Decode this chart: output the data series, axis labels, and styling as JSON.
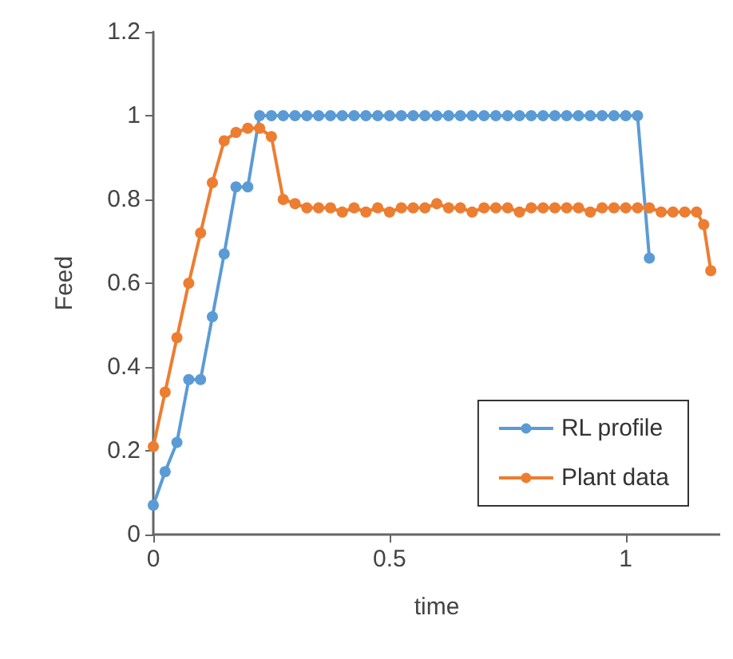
{
  "chart_data": {
    "type": "line",
    "xlabel": "time",
    "ylabel": "Feed",
    "series": [
      {
        "name": "RL profile",
        "color": "#5b9bd5",
        "x": [
          0,
          0.025,
          0.05,
          0.075,
          0.1,
          0.125,
          0.15,
          0.175,
          0.2,
          0.225,
          0.25,
          0.275,
          0.3,
          0.325,
          0.35,
          0.375,
          0.4,
          0.425,
          0.45,
          0.475,
          0.5,
          0.525,
          0.55,
          0.575,
          0.6,
          0.625,
          0.65,
          0.675,
          0.7,
          0.725,
          0.75,
          0.775,
          0.8,
          0.825,
          0.85,
          0.875,
          0.9,
          0.925,
          0.95,
          0.975,
          1,
          1.025,
          1.05
        ],
        "values": [
          0.07,
          0.15,
          0.22,
          0.37,
          0.37,
          0.52,
          0.67,
          0.83,
          0.83,
          1,
          1,
          1,
          1,
          1,
          1,
          1,
          1,
          1,
          1,
          1,
          1,
          1,
          1,
          1,
          1,
          1,
          1,
          1,
          1,
          1,
          1,
          1,
          1,
          1,
          1,
          1,
          1,
          1,
          1,
          1,
          1,
          1,
          0.66
        ]
      },
      {
        "name": "Plant data",
        "color": "#ed7d31",
        "x": [
          0,
          0.025,
          0.05,
          0.075,
          0.1,
          0.125,
          0.15,
          0.175,
          0.2,
          0.225,
          0.25,
          0.275,
          0.3,
          0.325,
          0.35,
          0.375,
          0.4,
          0.425,
          0.45,
          0.475,
          0.5,
          0.525,
          0.55,
          0.575,
          0.6,
          0.625,
          0.65,
          0.675,
          0.7,
          0.725,
          0.75,
          0.775,
          0.8,
          0.825,
          0.85,
          0.875,
          0.9,
          0.925,
          0.95,
          0.975,
          1,
          1.025,
          1.05,
          1.075,
          1.1,
          1.125,
          1.15,
          1.165,
          1.18
        ],
        "values": [
          0.21,
          0.34,
          0.47,
          0.6,
          0.72,
          0.84,
          0.94,
          0.96,
          0.97,
          0.97,
          0.95,
          0.8,
          0.79,
          0.78,
          0.78,
          0.78,
          0.77,
          0.78,
          0.77,
          0.78,
          0.77,
          0.78,
          0.78,
          0.78,
          0.79,
          0.78,
          0.78,
          0.77,
          0.78,
          0.78,
          0.78,
          0.77,
          0.78,
          0.78,
          0.78,
          0.78,
          0.78,
          0.77,
          0.78,
          0.78,
          0.78,
          0.78,
          0.78,
          0.77,
          0.77,
          0.77,
          0.77,
          0.74,
          0.63
        ]
      }
    ],
    "xlim": [
      0,
      1.2
    ],
    "xticks": [
      0,
      0.5,
      1
    ],
    "ylim": [
      0,
      1.2
    ],
    "yticks": [
      0,
      0.2,
      0.4,
      0.6,
      0.8,
      1,
      1.2
    ],
    "grid": false,
    "legend": "bottom right",
    "marker": "circle",
    "line_style": "solid"
  }
}
